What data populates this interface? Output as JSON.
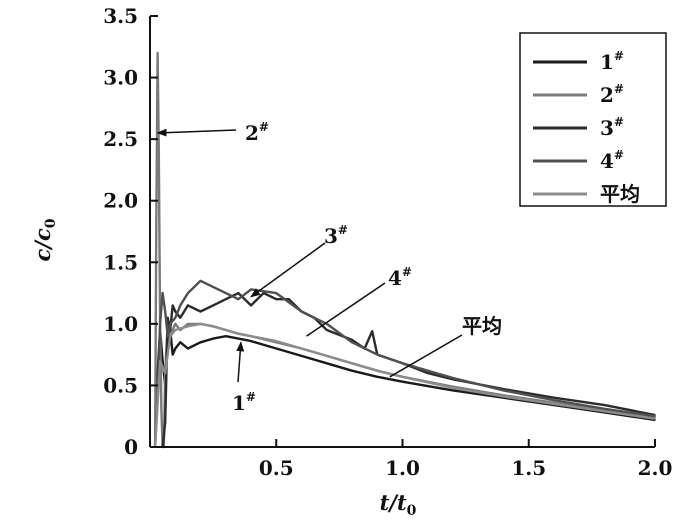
{
  "chart_data": {
    "type": "line",
    "xlabel": {
      "main": "t/t",
      "sub": "0"
    },
    "ylabel": {
      "main": "c/c",
      "sub": "0"
    },
    "xlim": [
      0,
      2.0
    ],
    "ylim": [
      0,
      3.5
    ],
    "xticks": [
      {
        "value": 0.5,
        "label": "0.5"
      },
      {
        "value": 1.0,
        "label": "1.0"
      },
      {
        "value": 1.5,
        "label": "1.5"
      },
      {
        "value": 2.0,
        "label": "2.0"
      }
    ],
    "yticks": [
      {
        "value": 0,
        "label": "0"
      },
      {
        "value": 0.5,
        "label": "0.5"
      },
      {
        "value": 1.0,
        "label": "1.0"
      },
      {
        "value": 1.5,
        "label": "1.5"
      },
      {
        "value": 2.0,
        "label": "2.0"
      },
      {
        "value": 2.5,
        "label": "2.5"
      },
      {
        "value": 3.0,
        "label": "3.0"
      },
      {
        "value": 3.5,
        "label": "3.5"
      }
    ],
    "legend_position": "top-right",
    "series": [
      {
        "name": "1#",
        "name_base": "1",
        "name_sup": "#",
        "color": "#1a1a1a",
        "x": [
          0.02,
          0.03,
          0.04,
          0.05,
          0.06,
          0.07,
          0.08,
          0.09,
          0.1,
          0.12,
          0.15,
          0.2,
          0.25,
          0.3,
          0.35,
          0.4,
          0.5,
          0.6,
          0.7,
          0.8,
          0.9,
          1.0,
          1.2,
          1.4,
          1.6,
          1.8,
          2.0
        ],
        "y": [
          0,
          0.6,
          0.95,
          0.7,
          0.5,
          0.85,
          0.95,
          0.75,
          0.8,
          0.85,
          0.8,
          0.85,
          0.88,
          0.9,
          0.88,
          0.86,
          0.8,
          0.74,
          0.68,
          0.62,
          0.57,
          0.53,
          0.46,
          0.4,
          0.34,
          0.28,
          0.22
        ]
      },
      {
        "name": "2#",
        "name_base": "2",
        "name_sup": "#",
        "color": "#7a7a7a",
        "x": [
          0.02,
          0.025,
          0.03,
          0.035,
          0.04,
          0.045,
          0.05,
          0.055,
          0.06,
          0.07,
          0.08,
          0.09,
          0.1,
          0.12,
          0.15,
          0.2,
          0.25,
          0.3,
          0.35,
          0.4,
          0.5,
          0.6,
          0.7,
          0.8,
          0.9,
          1.0,
          1.2,
          1.4,
          1.6,
          1.8,
          2.0
        ],
        "y": [
          0,
          1.8,
          3.2,
          2.4,
          1.0,
          0.3,
          0.0,
          0.0,
          0.6,
          1.0,
          0.9,
          0.95,
          1.0,
          0.95,
          1.0,
          1.0,
          0.98,
          0.95,
          0.92,
          0.9,
          0.85,
          0.8,
          0.74,
          0.68,
          0.62,
          0.57,
          0.49,
          0.42,
          0.36,
          0.3,
          0.24
        ]
      },
      {
        "name": "3#",
        "name_base": "3",
        "name_sup": "#",
        "color": "#2b2b2b",
        "x": [
          0.05,
          0.06,
          0.07,
          0.08,
          0.09,
          0.1,
          0.12,
          0.15,
          0.2,
          0.25,
          0.3,
          0.35,
          0.4,
          0.45,
          0.5,
          0.55,
          0.6,
          0.65,
          0.7,
          0.8,
          0.85,
          0.88,
          0.9,
          1.0,
          1.1,
          1.2,
          1.4,
          1.6,
          1.8,
          2.0
        ],
        "y": [
          0,
          0.2,
          1.05,
          0.95,
          1.15,
          1.1,
          1.05,
          1.15,
          1.1,
          1.15,
          1.2,
          1.25,
          1.15,
          1.25,
          1.2,
          1.2,
          1.1,
          1.05,
          0.95,
          0.87,
          0.8,
          0.94,
          0.75,
          0.68,
          0.6,
          0.55,
          0.47,
          0.4,
          0.34,
          0.26
        ]
      },
      {
        "name": "4#",
        "name_base": "4",
        "name_sup": "#",
        "color": "#505050",
        "x": [
          0.02,
          0.03,
          0.04,
          0.05,
          0.06,
          0.07,
          0.08,
          0.1,
          0.12,
          0.15,
          0.2,
          0.25,
          0.3,
          0.35,
          0.4,
          0.5,
          0.6,
          0.7,
          0.8,
          0.9,
          1.0,
          1.2,
          1.4,
          1.6,
          1.8,
          2.0
        ],
        "y": [
          0,
          0.4,
          1.0,
          1.25,
          1.1,
          0.9,
          1.0,
          1.05,
          1.15,
          1.25,
          1.35,
          1.3,
          1.25,
          1.2,
          1.28,
          1.25,
          1.1,
          1.0,
          0.85,
          0.75,
          0.68,
          0.56,
          0.46,
          0.38,
          0.31,
          0.25
        ]
      },
      {
        "name": "平均",
        "name_base": "平均",
        "name_sup": "",
        "color": "#8c8c8c",
        "x": [
          0.02,
          0.04,
          0.06,
          0.08,
          0.1,
          0.15,
          0.2,
          0.25,
          0.3,
          0.35,
          0.4,
          0.5,
          0.6,
          0.7,
          0.8,
          0.9,
          1.0,
          1.2,
          1.4,
          1.6,
          1.8,
          2.0
        ],
        "y": [
          0,
          0.7,
          0.6,
          0.9,
          0.95,
          0.98,
          1.0,
          0.98,
          0.95,
          0.92,
          0.9,
          0.86,
          0.8,
          0.74,
          0.68,
          0.62,
          0.57,
          0.48,
          0.41,
          0.35,
          0.29,
          0.23
        ]
      }
    ],
    "annotations": [
      {
        "base": "2",
        "sup": "#",
        "x": 0.03,
        "y": 2.55
      },
      {
        "base": "3",
        "sup": "#",
        "x": 0.4,
        "y": 1.22
      },
      {
        "base": "4",
        "sup": "#",
        "x": 0.62,
        "y": 0.9
      },
      {
        "base": "1",
        "sup": "#",
        "x": 0.36,
        "y": 0.85
      },
      {
        "base": "平均",
        "sup": "",
        "x": 0.95,
        "y": 0.57
      }
    ]
  }
}
